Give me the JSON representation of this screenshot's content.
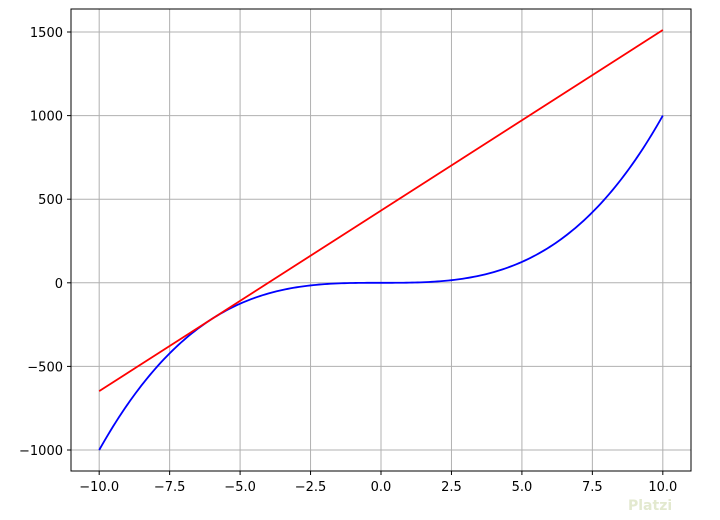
{
  "chart_data": {
    "type": "line",
    "title": "",
    "xlabel": "",
    "ylabel": "",
    "xlim": [
      -11,
      11
    ],
    "ylim": [
      -1125.6,
      1637.6
    ],
    "grid": true,
    "xticks": [
      -10,
      -7.5,
      -5,
      -2.5,
      0,
      2.5,
      5,
      7.5,
      10
    ],
    "xtick_labels": [
      "−10.0",
      "−7.5",
      "−5.0",
      "−2.5",
      "0.0",
      "2.5",
      "5.0",
      "7.5",
      "10.0"
    ],
    "yticks": [
      -1000,
      -500,
      0,
      500,
      1000,
      1500
    ],
    "ytick_labels": [
      "−1000",
      "−500",
      "0",
      "500",
      "1000",
      "1500"
    ],
    "series": [
      {
        "function": "y = x^3",
        "x_range": [
          -10,
          10
        ],
        "color": "#0000ff"
      },
      {
        "function": "y = 108x + 432",
        "x_range": [
          -10,
          10
        ],
        "color": "#ff0000",
        "points": [
          [
            -10,
            -648
          ],
          [
            10,
            1512
          ]
        ]
      }
    ]
  },
  "watermark": "Platzi"
}
